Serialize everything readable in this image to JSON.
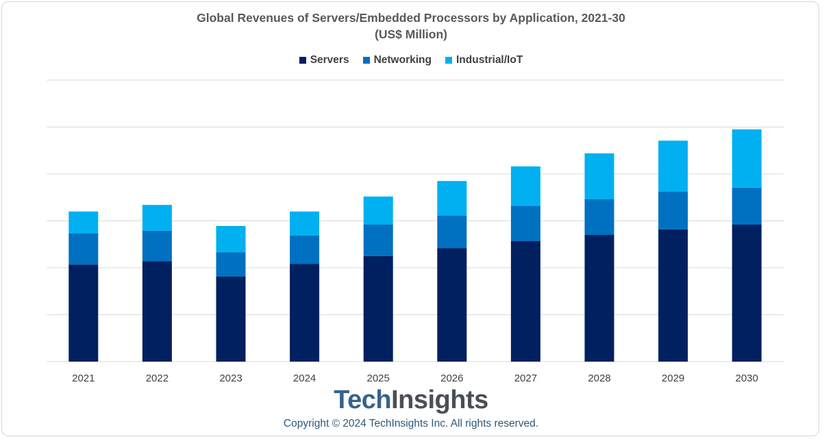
{
  "title_line1": "Global Revenues of Servers/Embedded Processors by Application, 2021-30",
  "title_line2": "(US$ Million)",
  "colors": {
    "Servers": "#002060",
    "Networking": "#0070c0",
    "Industrial/IoT": "#00b0f0",
    "grid": "#d9d9d9",
    "axis_label": "#404040"
  },
  "logo": {
    "part1": "Tech",
    "part2": "Insights"
  },
  "copyright": "Copyright © 2024 TechInsights Inc.  All rights reserved.",
  "chart_data": {
    "type": "bar",
    "stacked": true,
    "categories": [
      "2021",
      "2022",
      "2023",
      "2024",
      "2025",
      "2026",
      "2027",
      "2028",
      "2029",
      "2030"
    ],
    "series": [
      {
        "name": "Servers",
        "values": [
          2.07,
          2.14,
          1.81,
          2.08,
          2.25,
          2.42,
          2.57,
          2.7,
          2.82,
          2.92
        ]
      },
      {
        "name": "Networking",
        "values": [
          0.66,
          0.65,
          0.52,
          0.61,
          0.67,
          0.69,
          0.75,
          0.76,
          0.8,
          0.79
        ]
      },
      {
        "name": "Industrial/IoT",
        "values": [
          0.47,
          0.55,
          0.56,
          0.51,
          0.6,
          0.74,
          0.84,
          0.98,
          1.09,
          1.24
        ]
      }
    ],
    "ylim": [
      0,
      6
    ],
    "gridlines": [
      0,
      1,
      2,
      3,
      4,
      5,
      6
    ],
    "grid": true,
    "ytick_labels_shown": false,
    "legend": "top-center",
    "xlabel": "",
    "ylabel": ""
  }
}
